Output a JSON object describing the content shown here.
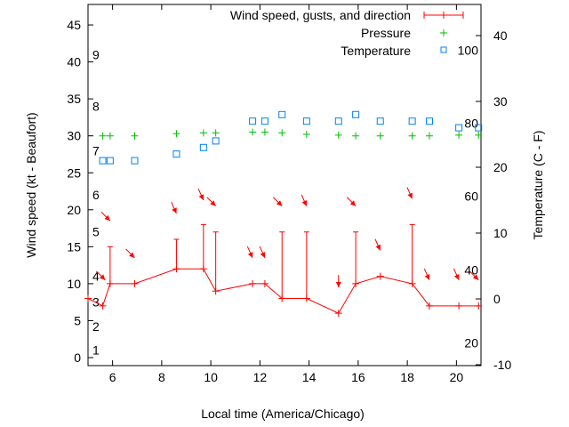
{
  "chart_data": {
    "type": "line",
    "title": "",
    "xlabel": "Local time (America/Chicago)",
    "ylabel": "Wind speed (kt - Beaufort)",
    "y2label": "Temperature (C - F)",
    "xlim": [
      5,
      21
    ],
    "ylim": [
      -1,
      47.8
    ],
    "y2lim": [
      -10,
      45
    ],
    "x_ticks": [
      6,
      8,
      10,
      12,
      14,
      16,
      18,
      20
    ],
    "y_ticks": [
      0,
      5,
      10,
      15,
      20,
      25,
      30,
      35,
      40,
      45
    ],
    "y2_ticks": [
      -10,
      0,
      10,
      20,
      30,
      40
    ],
    "beaufort_labels": [
      {
        "label": "1",
        "kt": 1
      },
      {
        "label": "2",
        "kt": 4.2
      },
      {
        "label": "3",
        "kt": 7.5
      },
      {
        "label": "4",
        "kt": 11
      },
      {
        "label": "5",
        "kt": 17
      },
      {
        "label": "6",
        "kt": 22
      },
      {
        "label": "7",
        "kt": 28
      },
      {
        "label": "8",
        "kt": 34
      },
      {
        "label": "9",
        "kt": 41
      }
    ],
    "fahrenheit_labels": [
      {
        "label": "20",
        "c": -6.7
      },
      {
        "label": "40",
        "c": 4.4
      },
      {
        "label": "60",
        "c": 15.6
      },
      {
        "label": "80",
        "c": 26.7
      },
      {
        "label": "100",
        "c": 37.8
      }
    ],
    "legend": [
      {
        "label": "Wind speed, gusts, and direction",
        "color": "#ff0000"
      },
      {
        "label": "Pressure",
        "color": "#00c000"
      },
      {
        "label": "Temperature",
        "color": "#0080ff"
      }
    ],
    "legend_position": "top-right",
    "series": [
      {
        "name": "Wind speed",
        "color": "#ff0000",
        "x": [
          5.0,
          5.6,
          5.9,
          6.9,
          8.6,
          9.7,
          10.2,
          11.7,
          12.2,
          12.9,
          13.9,
          15.2,
          15.9,
          16.9,
          18.2,
          18.9,
          20.1,
          20.9
        ],
        "y": [
          8,
          7,
          10,
          10,
          12,
          12,
          9,
          10,
          10,
          8,
          8,
          6,
          10,
          11,
          10,
          7,
          7,
          7
        ],
        "gusts": [
          null,
          null,
          15,
          null,
          16,
          18,
          17,
          null,
          null,
          17,
          17,
          null,
          17,
          null,
          18,
          null,
          null,
          null
        ]
      },
      {
        "name": "Wind direction",
        "color": "#ff0000",
        "arrows": [
          {
            "x": 5.7,
            "y": 10.5,
            "dir": "se"
          },
          {
            "x": 5.9,
            "y": 18.5,
            "dir": "se"
          },
          {
            "x": 6.9,
            "y": 13.5,
            "dir": "se"
          },
          {
            "x": 8.6,
            "y": 19.5,
            "dir": "sse"
          },
          {
            "x": 9.7,
            "y": 21.3,
            "dir": "sse"
          },
          {
            "x": 10.2,
            "y": 20.5,
            "dir": "se"
          },
          {
            "x": 11.7,
            "y": 13.5,
            "dir": "sse"
          },
          {
            "x": 12.2,
            "y": 13.5,
            "dir": "sse"
          },
          {
            "x": 12.9,
            "y": 20.5,
            "dir": "se"
          },
          {
            "x": 13.9,
            "y": 20.5,
            "dir": "sse"
          },
          {
            "x": 15.2,
            "y": 9.5,
            "dir": "s"
          },
          {
            "x": 15.9,
            "y": 20.5,
            "dir": "se"
          },
          {
            "x": 16.9,
            "y": 14.5,
            "dir": "sse"
          },
          {
            "x": 18.2,
            "y": 21.5,
            "dir": "sse"
          },
          {
            "x": 18.9,
            "y": 10.5,
            "dir": "sse"
          },
          {
            "x": 20.1,
            "y": 10.5,
            "dir": "sse"
          },
          {
            "x": 20.9,
            "y": 10.5,
            "dir": "se"
          }
        ]
      },
      {
        "name": "Pressure",
        "color": "#00c000",
        "axis": "y",
        "x": [
          5.6,
          5.9,
          6.9,
          8.6,
          9.7,
          10.2,
          11.7,
          12.2,
          12.9,
          13.9,
          15.2,
          15.9,
          16.9,
          18.2,
          18.9,
          20.1,
          20.9
        ],
        "y": [
          30,
          30,
          30,
          30.3,
          30.4,
          30.4,
          30.5,
          30.5,
          30.4,
          30.2,
          30.1,
          30,
          30,
          30,
          30,
          30.1,
          30.1
        ]
      },
      {
        "name": "Temperature",
        "color": "#0080ff",
        "axis": "y2",
        "x": [
          5.6,
          5.9,
          6.9,
          8.6,
          9.7,
          10.2,
          11.7,
          12.2,
          12.9,
          13.9,
          15.2,
          15.9,
          16.9,
          18.2,
          18.9,
          20.1,
          20.9
        ],
        "y": [
          21,
          21,
          21,
          22,
          23,
          24,
          27,
          27,
          28,
          27,
          27,
          28,
          27,
          27,
          27,
          26,
          26
        ]
      }
    ]
  }
}
